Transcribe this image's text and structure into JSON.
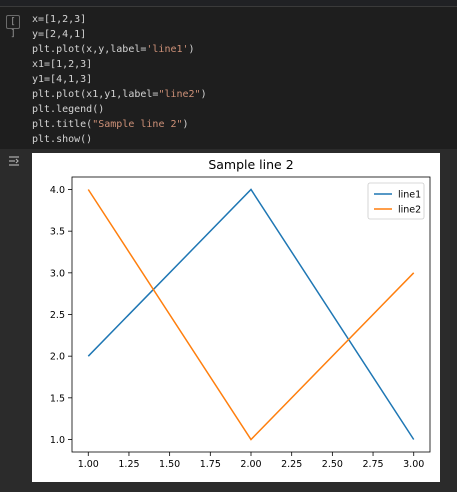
{
  "cell": {
    "run_button_glyph": "[ ]",
    "code_lines": [
      {
        "pre": "x=[1,2,3]"
      },
      {
        "pre": "y=[2,4,1]"
      },
      {
        "pre": "plt.plot(x,y,label=",
        "str": "'line1'",
        "post": ")"
      },
      {
        "pre": "x1=[1,2,3]"
      },
      {
        "pre": "y1=[4,1,3]"
      },
      {
        "pre": "plt.plot(x1,y1,label=",
        "str": "\"line2\"",
        "post": ")"
      },
      {
        "pre": "plt.legend()"
      },
      {
        "pre": "plt.title(",
        "str": "\"Sample line 2\"",
        "post": ")"
      },
      {
        "pre": "plt.show()"
      }
    ]
  },
  "output": {
    "icon": "output-toggle-icon"
  },
  "chart_data": {
    "type": "line",
    "title": "Sample line 2",
    "xlabel": "",
    "ylabel": "",
    "xlim": [
      0.9,
      3.1
    ],
    "ylim": [
      0.85,
      4.15
    ],
    "xticks": [
      1.0,
      1.25,
      1.5,
      1.75,
      2.0,
      2.25,
      2.5,
      2.75,
      3.0
    ],
    "xtick_labels": [
      "1.00",
      "1.25",
      "1.50",
      "1.75",
      "2.00",
      "2.25",
      "2.50",
      "2.75",
      "3.00"
    ],
    "yticks": [
      1.0,
      1.5,
      2.0,
      2.5,
      3.0,
      3.5,
      4.0
    ],
    "ytick_labels": [
      "1.0",
      "1.5",
      "2.0",
      "2.5",
      "3.0",
      "3.5",
      "4.0"
    ],
    "grid": false,
    "legend_position": "top-right",
    "series": [
      {
        "name": "line1",
        "color": "#1f77b4",
        "x": [
          1,
          2,
          3
        ],
        "y": [
          2,
          4,
          1
        ]
      },
      {
        "name": "line2",
        "color": "#ff7f0e",
        "x": [
          1,
          2,
          3
        ],
        "y": [
          4,
          1,
          3
        ]
      }
    ]
  }
}
